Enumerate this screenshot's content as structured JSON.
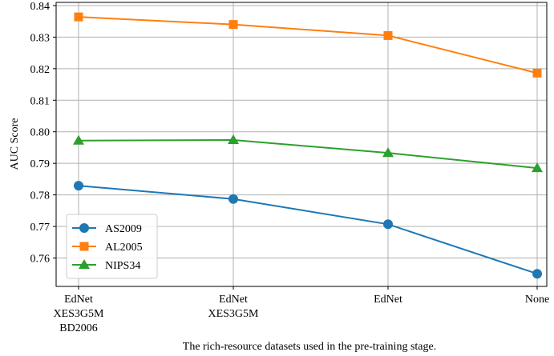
{
  "chart_data": {
    "type": "line",
    "xlabel": "The rich-resource datasets used in the pre-training stage.",
    "ylabel": "AUC Score",
    "ylim": [
      0.751,
      0.841
    ],
    "yticks": [
      0.76,
      0.77,
      0.78,
      0.79,
      0.8,
      0.81,
      0.82,
      0.83,
      0.84
    ],
    "ytick_labels": [
      "0.76",
      "0.77",
      "0.78",
      "0.79",
      "0.80",
      "0.81",
      "0.82",
      "0.83",
      "0.84"
    ],
    "grid": true,
    "legend_position": "lower-left",
    "categories": [
      [
        "EdNet",
        "XES3G5M",
        "BD2006"
      ],
      [
        "EdNet",
        "XES3G5M"
      ],
      [
        "EdNet"
      ],
      [
        "None"
      ]
    ],
    "series": [
      {
        "name": "AS2009",
        "color": "#1f77b4",
        "marker": "circle",
        "values": [
          0.7829,
          0.7787,
          0.7707,
          0.755
        ]
      },
      {
        "name": "AL2005",
        "color": "#ff7f0e",
        "marker": "square",
        "values": [
          0.8364,
          0.834,
          0.8305,
          0.8186
        ]
      },
      {
        "name": "NIPS34",
        "color": "#2ca02c",
        "marker": "triangle",
        "values": [
          0.7972,
          0.7974,
          0.7933,
          0.7885
        ]
      }
    ]
  }
}
